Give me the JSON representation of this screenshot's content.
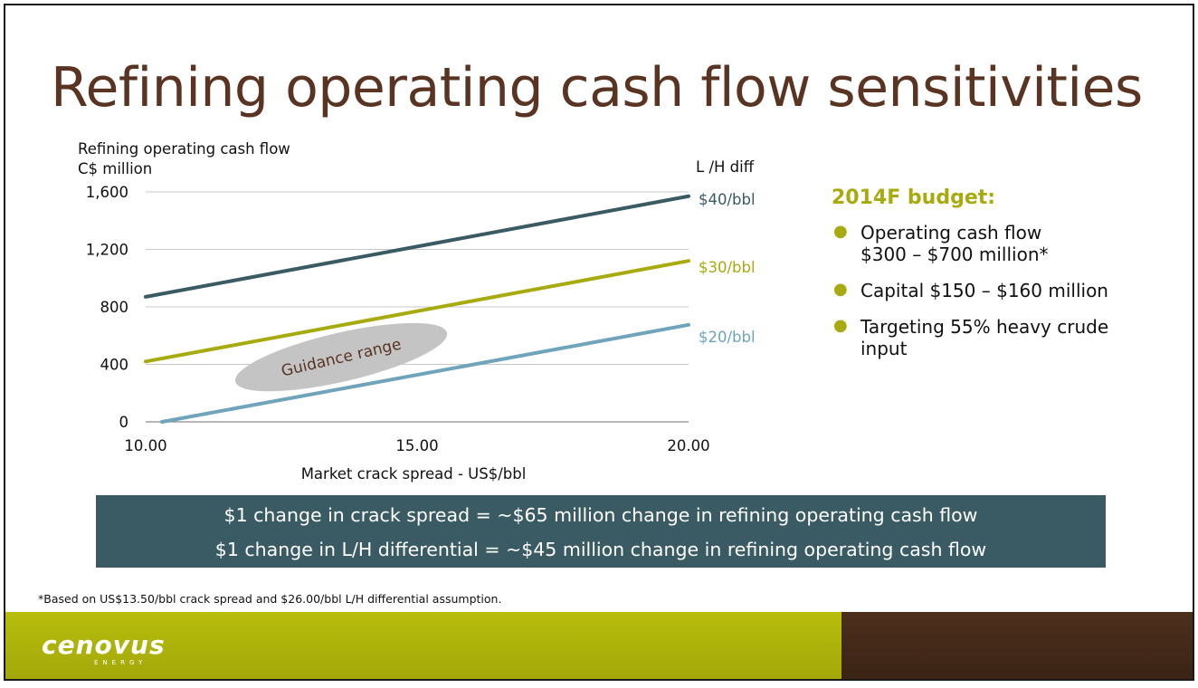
{
  "slide": {
    "title": "Refining operating cash flow sensitivities",
    "footnote": "*Based on US$13.50/bbl crack spread and $26.00/bbl L/H differential assumption."
  },
  "budget": {
    "title": "2014F budget:",
    "bullets": [
      {
        "line1": "Operating cash flow",
        "line2": "$300 – $700 million*"
      },
      {
        "line1": "Capital $150 – $160 million",
        "line2": ""
      },
      {
        "line1": "Targeting 55% heavy crude",
        "line2": "input"
      }
    ]
  },
  "band": {
    "line1": "$1 change in crack spread = ~$65 million change in refining operating cash flow",
    "line2": "$1 change in L/H differential = ~$45 million change in refining operating cash flow"
  },
  "logo": {
    "text": "cenovus",
    "sub": "ENERGY"
  },
  "colors": {
    "title": "#5a3422",
    "accent": "#a7ab10",
    "band": "#3a5b63",
    "series40": "#3a5b63",
    "series30": "#a7ab10",
    "series20": "#6fa4bb",
    "footer_brown": "#4d2f1c"
  },
  "chart_data": {
    "type": "line",
    "ylabel_line1": "Refining operating cash flow",
    "ylabel_line2": "C$ million",
    "xlabel": "Market crack spread - US$/bbl",
    "legend_title": "L /H diff",
    "xlim": [
      10,
      20
    ],
    "ylim": [
      0,
      1600
    ],
    "x_ticks": [
      "10.00",
      "15.00",
      "20.00"
    ],
    "y_ticks": [
      "0",
      "400",
      "800",
      "1,200",
      "1,600"
    ],
    "x_tick_values": [
      10,
      15,
      20
    ],
    "y_tick_values": [
      0,
      400,
      800,
      1200,
      1600
    ],
    "grid": true,
    "series": [
      {
        "name": "$40/bbl",
        "x": [
          10,
          20
        ],
        "y": [
          870,
          1570
        ],
        "color": "#3a5b63"
      },
      {
        "name": "$30/bbl",
        "x": [
          10,
          20
        ],
        "y": [
          420,
          1120
        ],
        "color": "#a7ab10"
      },
      {
        "name": "$20/bbl",
        "x": [
          10.3,
          20
        ],
        "y": [
          0,
          675
        ],
        "color": "#6fa4bb"
      }
    ],
    "annotation": {
      "text": "Guidance range",
      "x": 13.6,
      "y": 450
    }
  }
}
